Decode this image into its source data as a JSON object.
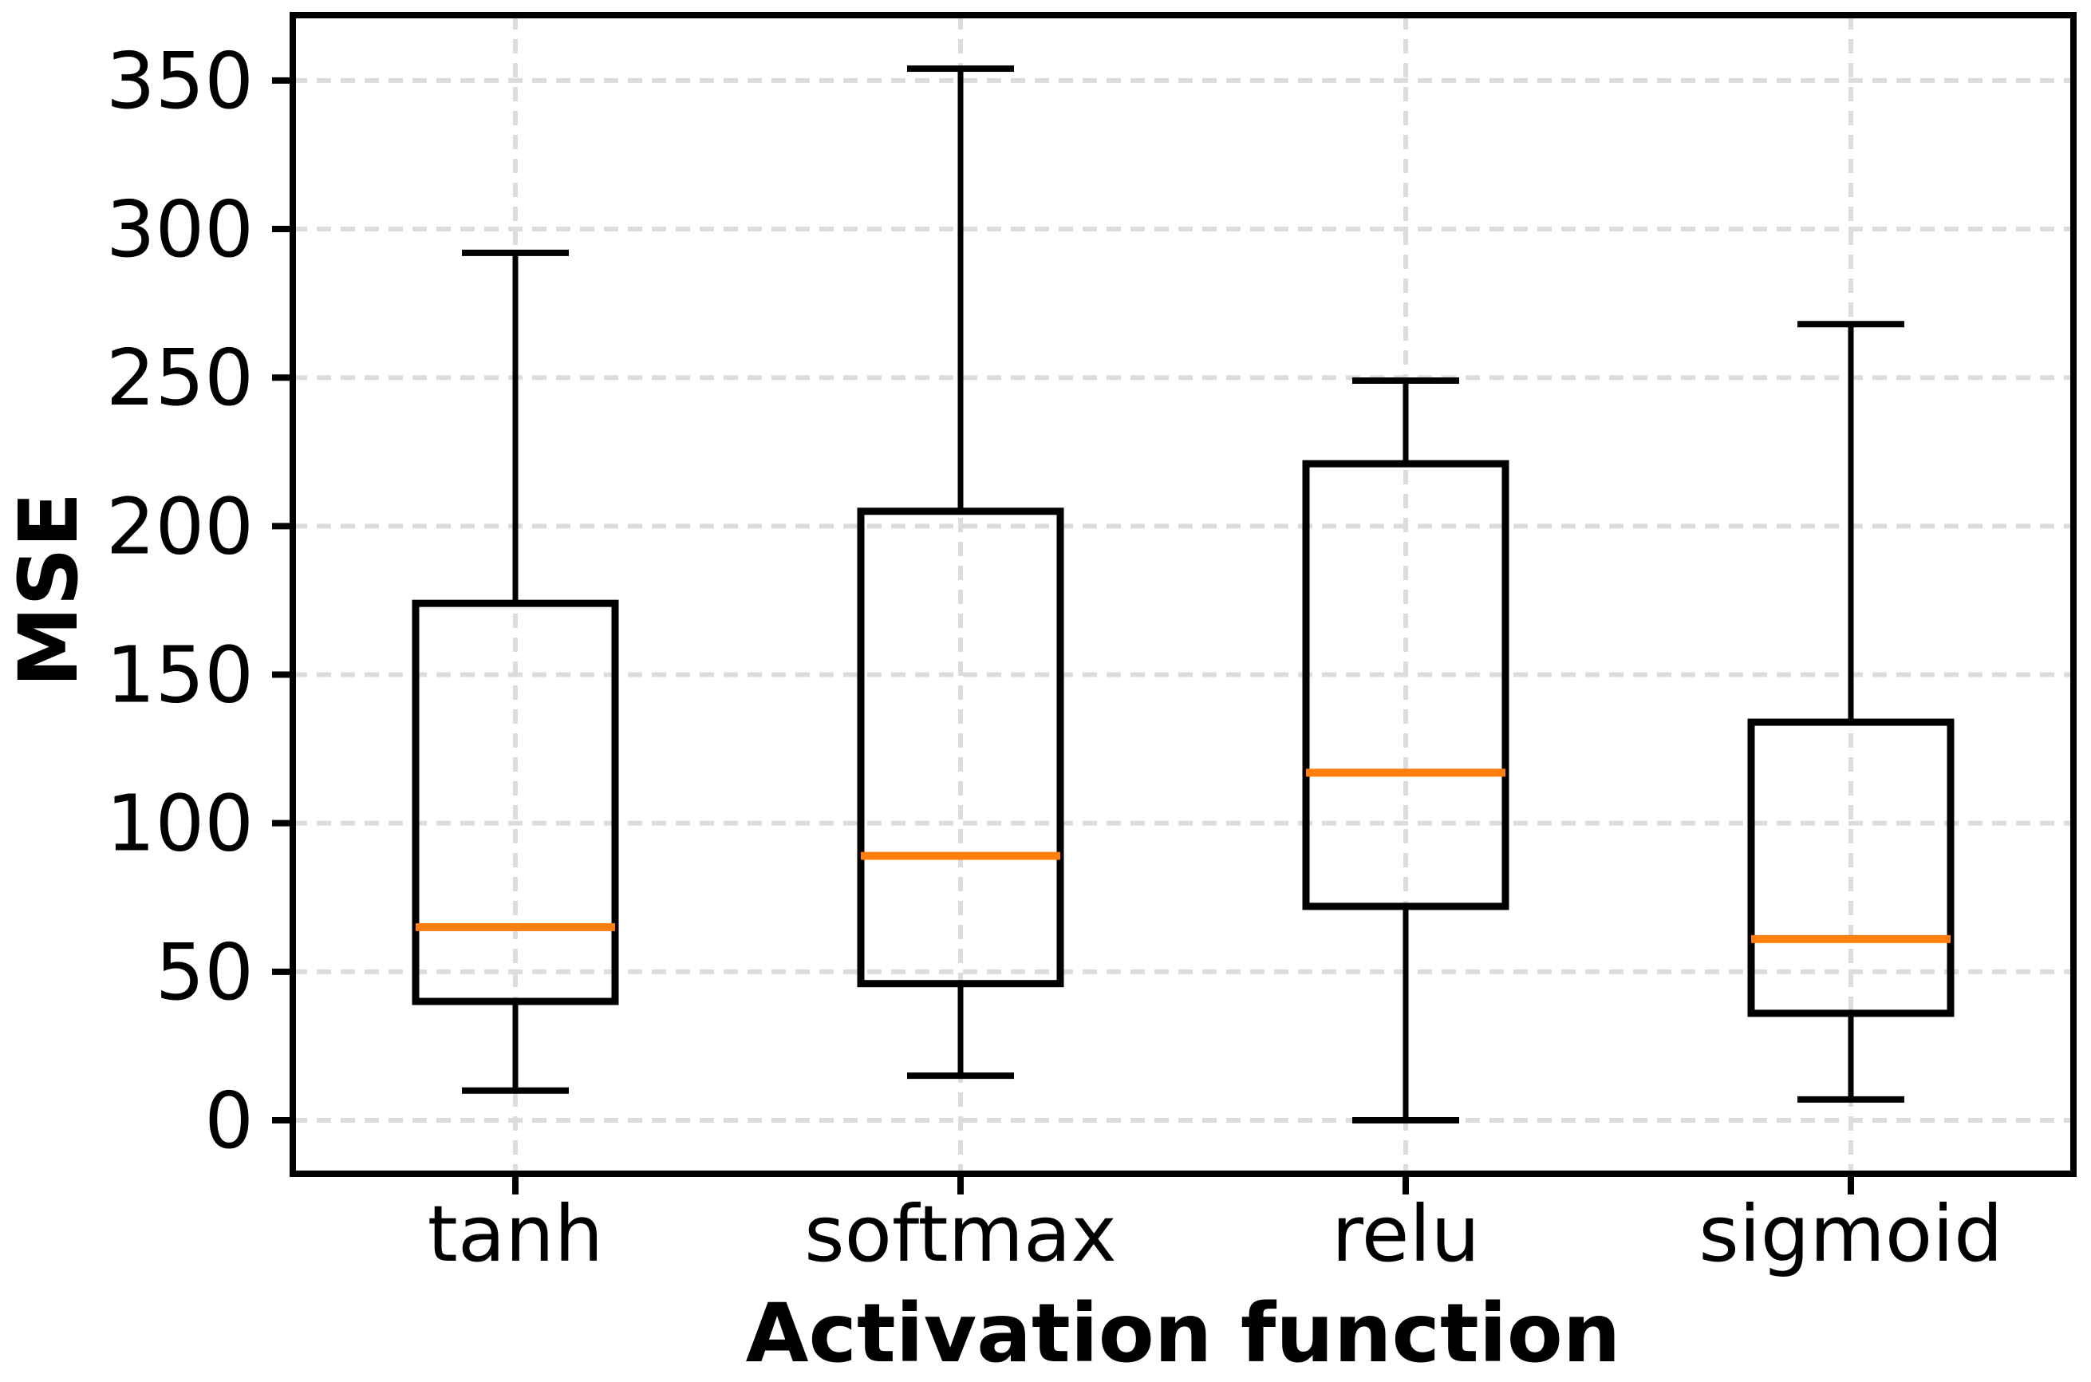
{
  "chart_data": {
    "type": "box",
    "title": "",
    "xlabel": "Activation function",
    "ylabel": "MSE",
    "categories": [
      "tanh",
      "softmax",
      "relu",
      "sigmoid"
    ],
    "series": [
      {
        "label": "tanh",
        "whisker_low": 10,
        "q1": 40,
        "median": 65,
        "q3": 174,
        "whisker_high": 292
      },
      {
        "label": "softmax",
        "whisker_low": 15,
        "q1": 46,
        "median": 89,
        "q3": 205,
        "whisker_high": 354
      },
      {
        "label": "relu",
        "whisker_low": 0,
        "q1": 72,
        "median": 117,
        "q3": 221,
        "whisker_high": 249
      },
      {
        "label": "sigmoid",
        "whisker_low": 7,
        "q1": 36,
        "median": 61,
        "q3": 134,
        "whisker_high": 268
      }
    ],
    "yticks": [
      0,
      50,
      100,
      150,
      200,
      250,
      300,
      350
    ],
    "ylim": [
      -18,
      372
    ],
    "grid": {
      "visible": true,
      "style": "dashed",
      "horizontal": true,
      "vertical": true
    },
    "legend": null,
    "colors": {
      "box": "#000000",
      "median": "#ff7f0e",
      "grid": "#dcdcdc",
      "background": "#ffffff",
      "text": "#000000"
    }
  }
}
